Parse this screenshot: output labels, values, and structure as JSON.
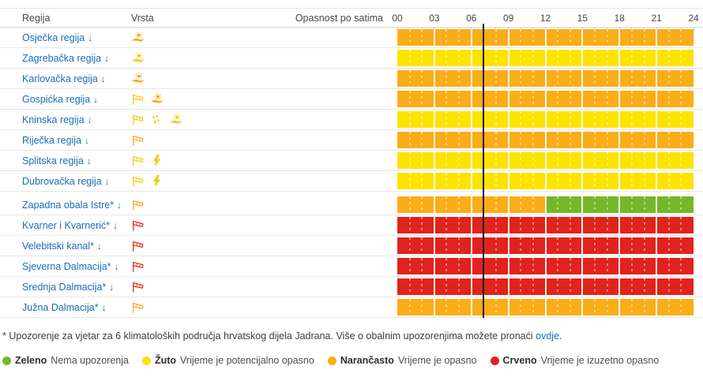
{
  "table": {
    "columns": {
      "region": "Regija",
      "type": "Vrsta",
      "hazard": "Opasnost po satima"
    },
    "hours": [
      "00",
      "03",
      "06",
      "09",
      "12",
      "15",
      "18",
      "21",
      "24"
    ],
    "hours_start": 0,
    "hours_end": 24,
    "now_hour": 7,
    "expand_arrow": "↓",
    "rows": [
      {
        "region": "Osječka regija",
        "icons": [
          {
            "kind": "heat",
            "severity": "orange"
          }
        ],
        "segments": [
          {
            "from": 0,
            "to": 24,
            "severity": "orange"
          }
        ]
      },
      {
        "region": "Zagrebačka regija",
        "icons": [
          {
            "kind": "heat",
            "severity": "yellow"
          }
        ],
        "segments": [
          {
            "from": 0,
            "to": 24,
            "severity": "yellow"
          }
        ]
      },
      {
        "region": "Karlovačka regija",
        "icons": [
          {
            "kind": "heat",
            "severity": "orange"
          }
        ],
        "segments": [
          {
            "from": 0,
            "to": 24,
            "severity": "orange"
          }
        ]
      },
      {
        "region": "Gospićka regija",
        "icons": [
          {
            "kind": "windsock",
            "severity": "yellow"
          },
          {
            "kind": "heat",
            "severity": "orange"
          }
        ],
        "segments": [
          {
            "from": 0,
            "to": 24,
            "severity": "orange"
          }
        ]
      },
      {
        "region": "Kninska regija",
        "icons": [
          {
            "kind": "windsock",
            "severity": "yellow"
          },
          {
            "kind": "rain",
            "severity": "yellow"
          },
          {
            "kind": "heat",
            "severity": "yellow"
          }
        ],
        "segments": [
          {
            "from": 0,
            "to": 24,
            "severity": "yellow"
          }
        ]
      },
      {
        "region": "Riječka regija",
        "icons": [
          {
            "kind": "windsock",
            "severity": "orange"
          }
        ],
        "segments": [
          {
            "from": 0,
            "to": 24,
            "severity": "orange"
          }
        ]
      },
      {
        "region": "Splitska regija",
        "icons": [
          {
            "kind": "windsock",
            "severity": "yellow"
          },
          {
            "kind": "thunderstorm",
            "severity": "yellow"
          }
        ],
        "segments": [
          {
            "from": 0,
            "to": 24,
            "severity": "yellow"
          }
        ]
      },
      {
        "region": "Dubrovačka regija",
        "icons": [
          {
            "kind": "windsock",
            "severity": "yellow"
          },
          {
            "kind": "thunderstorm",
            "severity": "yellow"
          }
        ],
        "segments": [
          {
            "from": 0,
            "to": 24,
            "severity": "yellow"
          }
        ]
      },
      {
        "region": "Zapadna obala Istre*",
        "divider_before": true,
        "icons": [
          {
            "kind": "windsock",
            "severity": "orange"
          }
        ],
        "segments": [
          {
            "from": 0,
            "to": 12,
            "severity": "orange"
          },
          {
            "from": 12,
            "to": 24,
            "severity": "green"
          }
        ]
      },
      {
        "region": "Kvarner i Kvarnerić*",
        "icons": [
          {
            "kind": "windsock",
            "severity": "red"
          }
        ],
        "segments": [
          {
            "from": 0,
            "to": 24,
            "severity": "red"
          }
        ]
      },
      {
        "region": "Velebitski kanal*",
        "icons": [
          {
            "kind": "windsock",
            "severity": "red"
          }
        ],
        "segments": [
          {
            "from": 0,
            "to": 24,
            "severity": "red"
          }
        ]
      },
      {
        "region": "Sjeverna Dalmacija*",
        "icons": [
          {
            "kind": "windsock",
            "severity": "red"
          }
        ],
        "segments": [
          {
            "from": 0,
            "to": 24,
            "severity": "red"
          }
        ]
      },
      {
        "region": "Srednja Dalmacija*",
        "icons": [
          {
            "kind": "windsock",
            "severity": "red"
          }
        ],
        "segments": [
          {
            "from": 0,
            "to": 24,
            "severity": "red"
          }
        ]
      },
      {
        "region": "Južna Dalmacija*",
        "icons": [
          {
            "kind": "windsock",
            "severity": "orange"
          }
        ],
        "segments": [
          {
            "from": 0,
            "to": 24,
            "severity": "orange"
          }
        ]
      }
    ]
  },
  "severity_colors": {
    "green": "#74B829",
    "yellow": "#FDE300",
    "orange": "#FBAD18",
    "red": "#E0231C"
  },
  "icon_colors": {
    "yellow": "#F2CC0C",
    "orange": "#FAA61A",
    "red": "#E0231C"
  },
  "footnote": {
    "text": "* Upozorenje za vjetar za 6 klimatoloških područja hrvatskog dijela Jadrana. Više o obalnim upozorenjima možete pronaći",
    "link_label": "ovdje",
    "after_link": "."
  },
  "legend": [
    {
      "name": "Zeleno",
      "description": "Nema upozorenja",
      "severity": "green"
    },
    {
      "name": "Žuto",
      "description": "Vrijeme je potencijalno opasno",
      "severity": "yellow"
    },
    {
      "name": "Narančasto",
      "description": "Vrijeme je opasno",
      "severity": "orange"
    },
    {
      "name": "Crveno",
      "description": "Vrijeme je izuzetno opasno",
      "severity": "red"
    }
  ]
}
